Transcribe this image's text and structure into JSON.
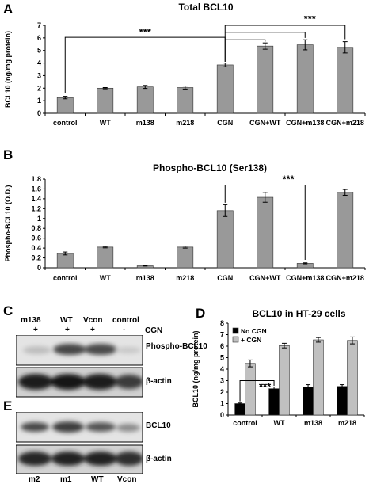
{
  "panels": {
    "A": {
      "letter": "A",
      "title": "Total BCL10"
    },
    "B": {
      "letter": "B",
      "title": "Phospho-BCL10 (Ser138)"
    },
    "C": {
      "letter": "C"
    },
    "D": {
      "letter": "D",
      "title": "BCL10 in HT-29 cells"
    },
    "E": {
      "letter": "E"
    }
  },
  "chart_data": [
    {
      "id": "A",
      "type": "bar",
      "title": "Total BCL10",
      "ylabel": "BCL10 (ng/mg protein)",
      "xlabel": "",
      "categories": [
        "control",
        "WT",
        "m138",
        "m218",
        "CGN",
        "CGN+WT",
        "CGN+m138",
        "CGN+m218"
      ],
      "values": [
        1.25,
        2.0,
        2.1,
        2.05,
        3.85,
        5.35,
        5.45,
        5.25
      ],
      "errors": [
        0.1,
        0.05,
        0.12,
        0.12,
        0.15,
        0.25,
        0.4,
        0.45
      ],
      "ylim": [
        0,
        7
      ],
      "yticks": [
        "0",
        "1",
        "2",
        "3",
        "4",
        "5",
        "6",
        "7"
      ],
      "bar_color": "#999999",
      "significance": "***"
    },
    {
      "id": "B",
      "type": "bar",
      "title": "Phospho-BCL10 (Ser138)",
      "ylabel": "Phospho-BCL10 (O.D.)",
      "xlabel": "",
      "categories": [
        "control",
        "WT",
        "m138",
        "m218",
        "CGN",
        "CGN+WT",
        "CGN+m138",
        "CGN+m218"
      ],
      "values": [
        0.29,
        0.42,
        0.04,
        0.42,
        1.16,
        1.43,
        0.09,
        1.53
      ],
      "errors": [
        0.03,
        0.015,
        0.005,
        0.02,
        0.12,
        0.1,
        0.01,
        0.06
      ],
      "ylim": [
        0,
        1.8
      ],
      "yticks": [
        "0",
        "0.2",
        "0.4",
        "0.6",
        "0.8",
        "1",
        "1.2",
        "1.4",
        "1.6",
        "1.8"
      ],
      "bar_color": "#999999",
      "significance": "***"
    },
    {
      "id": "D",
      "type": "bar",
      "title": "BCL10 in HT-29 cells",
      "ylabel": "BCL10 (ng/mg protein)",
      "xlabel": "",
      "categories": [
        "control",
        "WT",
        "m138",
        "m218"
      ],
      "series": [
        {
          "name": "No CGN",
          "values": [
            1.0,
            2.3,
            2.45,
            2.5
          ],
          "errors": [
            0.05,
            0.15,
            0.2,
            0.15
          ],
          "color": "#000000"
        },
        {
          "name": "+ CGN",
          "values": [
            4.5,
            6.05,
            6.55,
            6.5
          ],
          "errors": [
            0.3,
            0.2,
            0.2,
            0.3
          ],
          "color": "#c0c0c0"
        }
      ],
      "ylim": [
        0,
        8
      ],
      "yticks": [
        "0",
        "1",
        "2",
        "3",
        "4",
        "5",
        "6",
        "7",
        "8"
      ],
      "legend": "top-left",
      "significance": "***"
    }
  ],
  "blot_C": {
    "lanes": [
      "m138",
      "WT",
      "Vcon",
      "control"
    ],
    "cgn_label": "CGN",
    "cgn_marks": [
      "+",
      "+",
      "+",
      "-"
    ],
    "band_labels": [
      "Phospho-BCL10",
      "β-actin"
    ]
  },
  "blot_E": {
    "lanes": [
      "m2",
      "m1",
      "WT",
      "Vcon"
    ],
    "band_labels": [
      "BCL10",
      "β-actin"
    ]
  }
}
